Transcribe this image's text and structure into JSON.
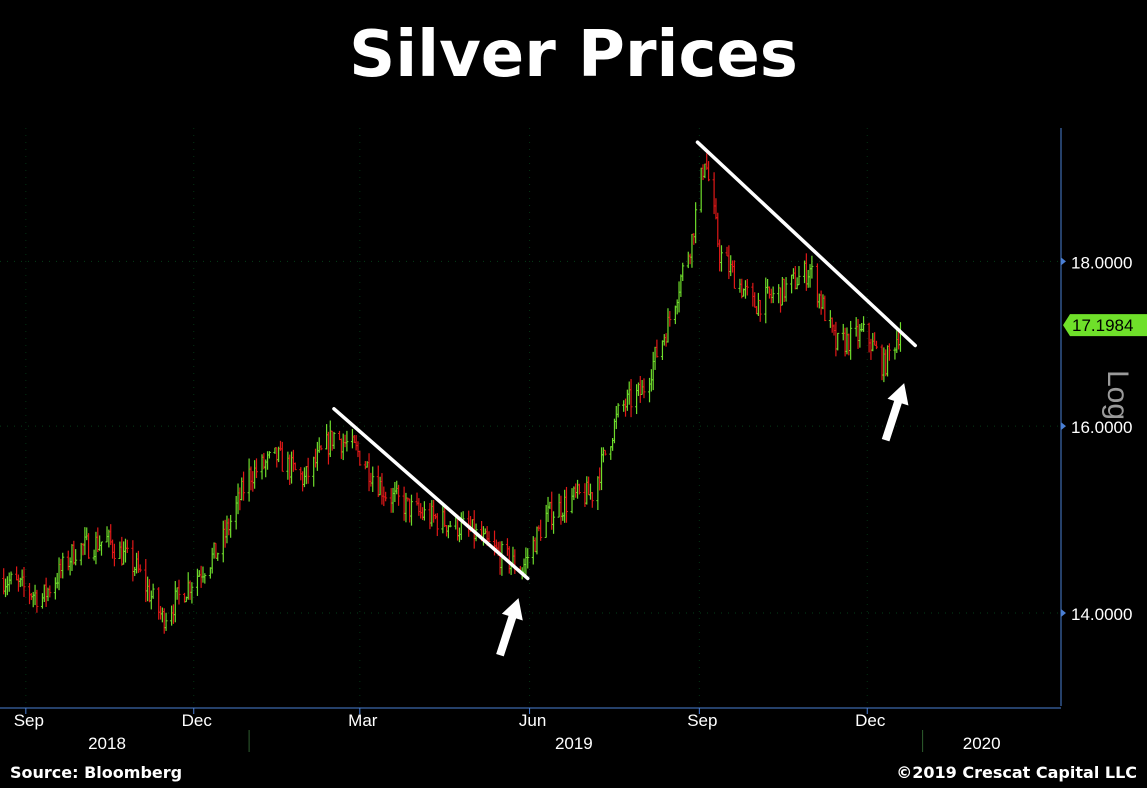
{
  "chart_data": {
    "type": "line",
    "style": "ohlc-bars",
    "title": "Silver Prices",
    "y_scale": "log",
    "y_scale_label": "Log",
    "ylim": [
      13.1,
      19.8
    ],
    "y_ticks": [
      "18.0000",
      "16.0000",
      "14.0000"
    ],
    "y_tick_values": [
      18,
      16,
      14
    ],
    "last_price": 17.1984,
    "last_price_label": "17.1984",
    "xlim": [
      "2018-08-18",
      "2020-03-15"
    ],
    "month_ticks": [
      {
        "label": "Sep",
        "date": "2018-09-01"
      },
      {
        "label": "Dec",
        "date": "2018-12-01"
      },
      {
        "label": "Mar",
        "date": "2019-03-01"
      },
      {
        "label": "Jun",
        "date": "2019-06-01"
      },
      {
        "label": "Sep",
        "date": "2019-09-01"
      },
      {
        "label": "Dec",
        "date": "2019-12-01"
      }
    ],
    "year_ticks": [
      {
        "label": "2018",
        "date": "2018-10-15"
      },
      {
        "label": "2019",
        "date": "2019-06-25"
      },
      {
        "label": "2020",
        "date": "2020-02-01"
      }
    ],
    "year_separators": [
      "2018-12-31",
      "2019-12-31"
    ],
    "series": [
      {
        "values": [
          [
            "2018-08-20",
            14.35
          ],
          [
            "2018-09-10",
            14.15
          ],
          [
            "2018-09-28",
            14.65
          ],
          [
            "2018-10-15",
            14.75
          ],
          [
            "2018-10-31",
            14.45
          ],
          [
            "2018-11-14",
            13.95
          ],
          [
            "2018-12-01",
            14.35
          ],
          [
            "2018-12-15",
            14.65
          ],
          [
            "2018-12-31",
            15.45
          ],
          [
            "2019-01-15",
            15.65
          ],
          [
            "2019-01-30",
            15.4
          ],
          [
            "2019-02-15",
            15.9
          ],
          [
            "2019-02-28",
            15.7
          ],
          [
            "2019-03-15",
            15.25
          ],
          [
            "2019-03-31",
            15.05
          ],
          [
            "2019-04-15",
            14.95
          ],
          [
            "2019-04-30",
            14.85
          ],
          [
            "2019-05-15",
            14.6
          ],
          [
            "2019-05-28",
            14.45
          ],
          [
            "2019-06-10",
            15.0
          ],
          [
            "2019-06-25",
            15.2
          ],
          [
            "2019-07-05",
            15.25
          ],
          [
            "2019-07-20",
            16.2
          ],
          [
            "2019-08-01",
            16.4
          ],
          [
            "2019-08-15",
            17.2
          ],
          [
            "2019-08-28",
            18.3
          ],
          [
            "2019-09-04",
            19.4
          ],
          [
            "2019-09-12",
            18.1
          ],
          [
            "2019-09-30",
            17.45
          ],
          [
            "2019-10-15",
            17.6
          ],
          [
            "2019-10-31",
            17.9
          ],
          [
            "2019-11-14",
            16.95
          ],
          [
            "2019-11-30",
            17.1
          ],
          [
            "2019-12-10",
            16.7
          ],
          [
            "2019-12-20",
            17.2
          ]
        ]
      }
    ],
    "trendlines": [
      {
        "from": [
          "2019-02-15",
          16.2
        ],
        "to": [
          "2019-05-31",
          14.35
        ]
      },
      {
        "from": [
          "2019-08-31",
          19.6
        ],
        "to": [
          "2019-12-27",
          16.95
        ]
      }
    ],
    "arrows": [
      {
        "date": "2019-05-26",
        "y": 14.15
      },
      {
        "date": "2019-12-21",
        "y": 16.5
      }
    ],
    "colors": {
      "up": "#6edc2c",
      "down": "#e01818",
      "axis": "#4a7fd4",
      "price_tag": "#6fe02a",
      "trendline": "#ffffff",
      "grid_dots": "#0a6e2a"
    },
    "grid": true
  },
  "footer": {
    "source": "Source: Bloomberg",
    "copyright": "©2019 Crescat Capital LLC"
  }
}
